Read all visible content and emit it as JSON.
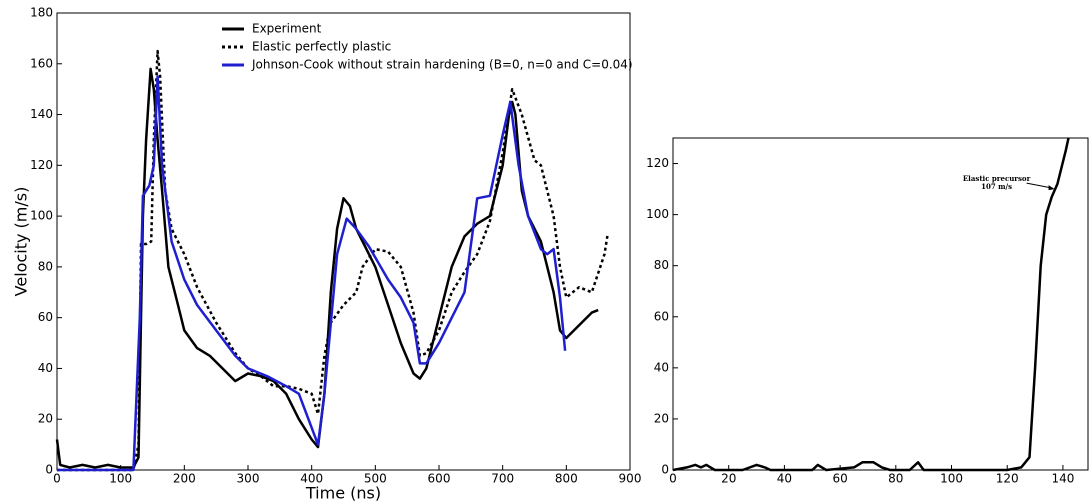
{
  "chart_data": [
    {
      "type": "line",
      "xlabel": "Time (ns)",
      "ylabel": "Velocity (m/s)",
      "xlim": [
        0,
        900
      ],
      "xticks": [
        0,
        100,
        200,
        300,
        400,
        500,
        600,
        700,
        800,
        900
      ],
      "ylim": [
        0,
        180
      ],
      "yticks": [
        0,
        20,
        40,
        60,
        80,
        100,
        120,
        140,
        160,
        180
      ],
      "legend": "upper center",
      "series": [
        {
          "name": "Experiment",
          "color": "#000000",
          "dash": "solid",
          "x": [
            0,
            5,
            20,
            40,
            60,
            80,
            100,
            120,
            128,
            132,
            135,
            140,
            147,
            152,
            158,
            165,
            175,
            190,
            200,
            220,
            240,
            260,
            280,
            300,
            320,
            340,
            360,
            380,
            400,
            410,
            420,
            430,
            440,
            450,
            460,
            470,
            480,
            500,
            520,
            540,
            560,
            570,
            580,
            600,
            620,
            640,
            660,
            680,
            700,
            710,
            715,
            720,
            730,
            740,
            760,
            780,
            790,
            800,
            820,
            840,
            850
          ],
          "values": [
            12,
            2,
            1,
            2,
            1,
            2,
            1,
            1,
            5,
            60,
            100,
            130,
            158,
            150,
            130,
            110,
            80,
            65,
            55,
            48,
            45,
            40,
            35,
            38,
            37,
            35,
            30,
            20,
            12,
            9,
            30,
            70,
            95,
            107,
            104,
            95,
            90,
            80,
            65,
            50,
            38,
            36,
            40,
            60,
            80,
            92,
            97,
            100,
            120,
            140,
            145,
            140,
            110,
            100,
            90,
            70,
            55,
            52,
            57,
            62,
            63
          ]
        },
        {
          "name": "Elastic perfectly plastic",
          "color": "#000000",
          "dash": "dotted",
          "x": [
            0,
            120,
            128,
            132,
            140,
            148,
            152,
            158,
            162,
            170,
            180,
            200,
            220,
            250,
            280,
            300,
            320,
            340,
            360,
            380,
            400,
            410,
            420,
            430,
            450,
            470,
            480,
            500,
            520,
            540,
            560,
            570,
            580,
            600,
            620,
            640,
            660,
            680,
            700,
            715,
            730,
            750,
            760,
            780,
            790,
            800,
            820,
            840,
            860,
            865
          ],
          "values": [
            0,
            0,
            10,
            89,
            89,
            90,
            130,
            165,
            155,
            110,
            95,
            85,
            72,
            58,
            46,
            40,
            37,
            33,
            33,
            32,
            30,
            22,
            45,
            58,
            65,
            70,
            80,
            87,
            86,
            80,
            62,
            45,
            46,
            55,
            70,
            78,
            85,
            98,
            125,
            150,
            140,
            122,
            120,
            100,
            80,
            68,
            72,
            70,
            85,
            93
          ]
        },
        {
          "name": "Johnson-Cook without strain hardening (B=0, n=0 and C=0.04)",
          "color": "#1f1fd0",
          "dash": "solid",
          "x": [
            0,
            120,
            130,
            135,
            145,
            152,
            158,
            165,
            180,
            200,
            220,
            250,
            280,
            300,
            330,
            360,
            380,
            410,
            420,
            440,
            455,
            470,
            490,
            520,
            540,
            560,
            570,
            580,
            600,
            640,
            660,
            680,
            700,
            712,
            725,
            740,
            760,
            770,
            780,
            790,
            798
          ],
          "values": [
            0,
            0,
            60,
            108,
            112,
            120,
            155,
            120,
            90,
            75,
            65,
            55,
            45,
            40,
            37,
            33,
            30,
            10,
            30,
            85,
            99,
            95,
            88,
            75,
            68,
            58,
            42,
            42,
            50,
            70,
            107,
            108,
            132,
            145,
            120,
            100,
            87,
            85,
            87,
            68,
            47
          ]
        }
      ]
    },
    {
      "type": "line",
      "xlim": [
        0,
        149
      ],
      "xticks": [
        0,
        20,
        40,
        60,
        80,
        100,
        120,
        140
      ],
      "ylim": [
        0,
        130
      ],
      "yticks": [
        0,
        20,
        40,
        60,
        80,
        100,
        120
      ],
      "annotation": [
        "Elastic precursor",
        "107 m/s"
      ],
      "series": [
        {
          "color": "#000000",
          "dash": "solid",
          "x": [
            0,
            5,
            8,
            10,
            12,
            15,
            20,
            25,
            30,
            33,
            35,
            50,
            52,
            55,
            65,
            68,
            72,
            75,
            78,
            85,
            88,
            90,
            100,
            120,
            125,
            128,
            130,
            132,
            134,
            136,
            138,
            141,
            142
          ],
          "values": [
            0,
            1,
            2,
            1,
            2,
            0,
            0,
            0,
            2,
            1,
            0,
            0,
            2,
            0,
            1,
            3,
            3,
            1,
            0,
            0,
            3,
            0,
            0,
            0,
            1,
            5,
            40,
            80,
            100,
            107,
            112,
            125,
            130
          ]
        }
      ]
    }
  ]
}
